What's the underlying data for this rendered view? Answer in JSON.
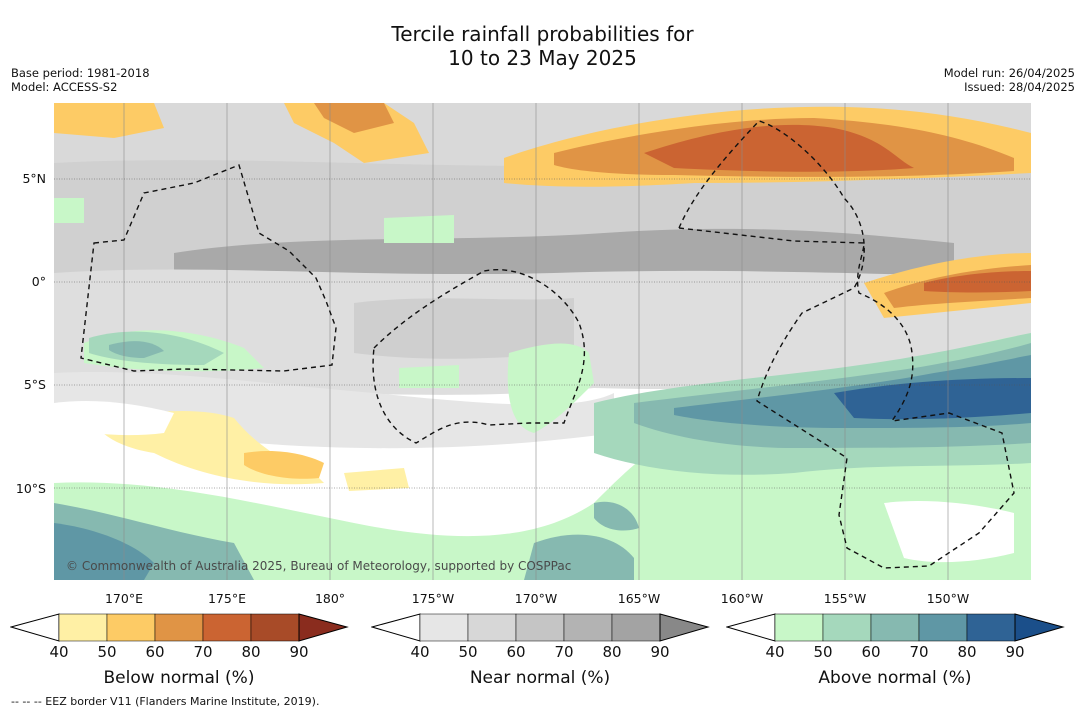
{
  "title": {
    "line1": "Tercile rainfall probabilities for",
    "line2": "10 to 23 May 2025"
  },
  "meta_left": {
    "base_period": "Base period: 1981-2018",
    "model": "Model: ACCESS-S2"
  },
  "meta_right": {
    "model_run": "Model run: 26/04/2025",
    "issued": "Issued: 28/04/2025"
  },
  "lat_labels": [
    "5°N",
    "0°",
    "5°S",
    "10°S"
  ],
  "lon_labels": [
    "170°E",
    "175°E",
    "180°",
    "175°W",
    "170°W",
    "165°W",
    "160°W",
    "155°W",
    "150°W"
  ],
  "copyright": "© Commonwealth of Australia 2025, Bureau of Meteorology, supported by COSPPac",
  "colorbars": [
    {
      "label": "Below normal (%)",
      "ticks": [
        "40",
        "50",
        "60",
        "70",
        "80",
        "90"
      ],
      "colors": [
        "#fff0a5",
        "#fdcb65",
        "#e09445",
        "#cb6432",
        "#a84b28",
        "#8a2c1e"
      ]
    },
    {
      "label": "Near normal (%)",
      "ticks": [
        "40",
        "50",
        "60",
        "70",
        "80",
        "90"
      ],
      "colors": [
        "#e6e6e6",
        "#d7d7d7",
        "#c5c5c5",
        "#b3b3b3",
        "#a3a3a3",
        "#888888"
      ]
    },
    {
      "label": "Above normal (%)",
      "ticks": [
        "40",
        "50",
        "60",
        "70",
        "80",
        "90"
      ],
      "colors": [
        "#c8f7c8",
        "#a5d8bc",
        "#86b9b0",
        "#5f97a5",
        "#2f6395",
        "#1b4f8a"
      ]
    }
  ],
  "footnote": "--  --  -- EEZ border V11 (Flanders Marine Institute, 2019)."
}
